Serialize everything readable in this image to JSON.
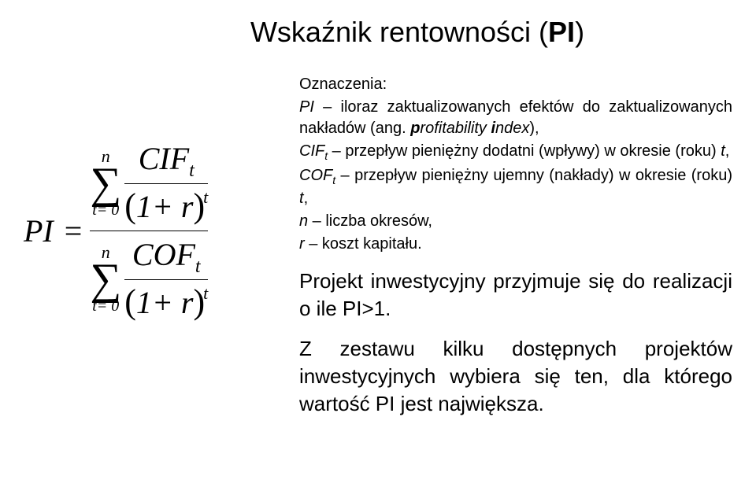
{
  "title_prefix": "Wskaźnik rentowności (",
  "title_bold": "PI",
  "title_suffix": ")",
  "formula": {
    "lhs": "PI",
    "eq": "=",
    "sigma_top": "n",
    "sigma_bottom": "t= 0",
    "num1": "CIF",
    "num1_sub": "t",
    "den_open": "(",
    "den_inner": "1+ r",
    "den_close": ")",
    "den_exp": "t",
    "num2": "COF",
    "num2_sub": "t"
  },
  "right": {
    "ozn": "Oznaczenia:",
    "pi_line_pre": "PI",
    "pi_line_rest": " – iloraz zaktualizowanych efektów do zaktualizowanych nakładów (ang. ",
    "pi_line_it1": "p",
    "pi_line_mid1": "rofitability ",
    "pi_line_it2": "i",
    "pi_line_mid2": "ndex",
    "pi_line_end": "),",
    "cif_pre": "CIF",
    "cif_sub": "t",
    "cif_rest": " – przepływ pieniężny dodatni (wpływy) w okresie (roku) ",
    "cif_t": "t",
    "cif_comma": ",",
    "cof_pre": "COF",
    "cof_sub": "t",
    "cof_rest": " – przepływ pieniężny ujemny (nakłady) w okresie (roku) ",
    "cof_t": "t",
    "cof_comma": ",",
    "n_pre": "n",
    "n_rest": " – liczba okresów,",
    "r_pre": "r",
    "r_rest": " – koszt kapitału.",
    "big1": "Projekt inwestycyjny przyjmuje się do realizacji o ile PI>1.",
    "big2": "Z zestawu kilku dostępnych projektów inwestycyjnych wybiera się ten, dla którego wartość PI jest największa."
  }
}
